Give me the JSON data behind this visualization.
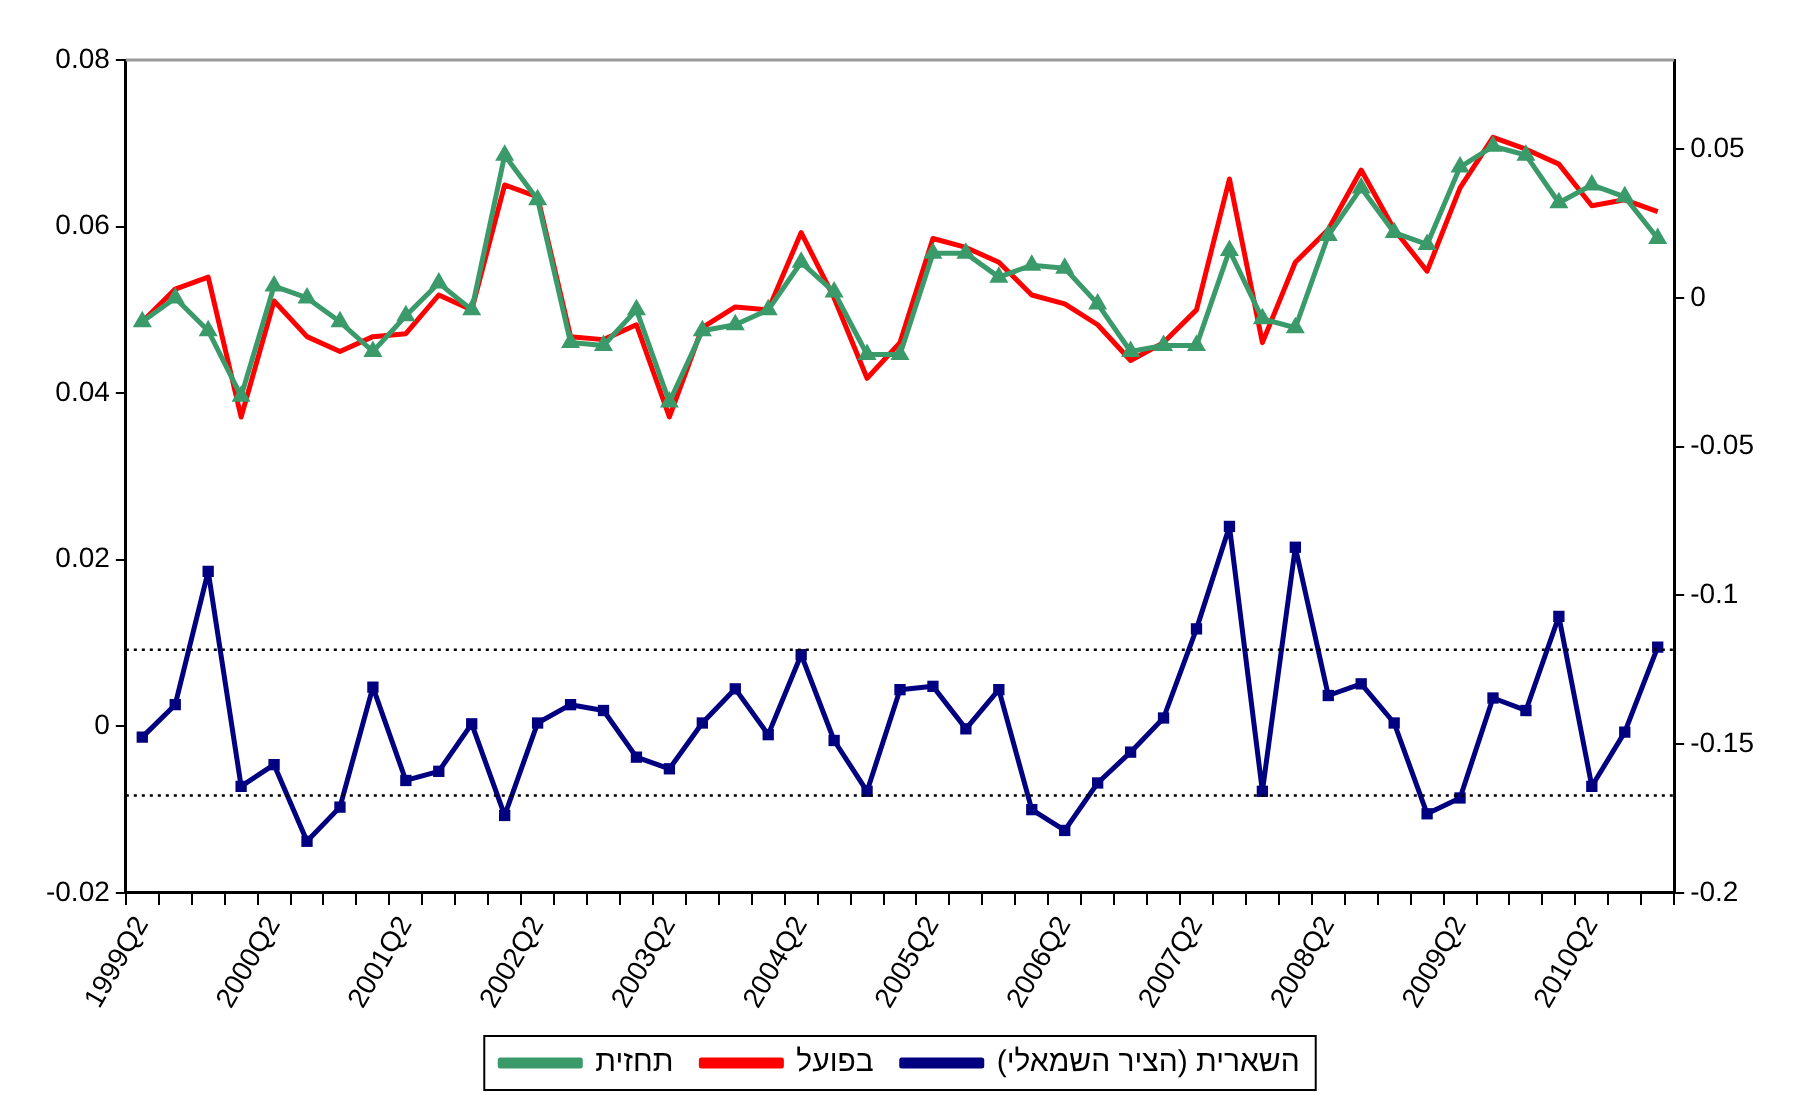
{
  "chart_data": {
    "type": "line",
    "categories": [
      "1999Q2",
      null,
      null,
      null,
      "2000Q2",
      null,
      null,
      null,
      "2001Q2",
      null,
      null,
      null,
      "2002Q2",
      null,
      null,
      null,
      "2003Q2",
      null,
      null,
      null,
      "2004Q2",
      null,
      null,
      null,
      "2005Q2",
      null,
      null,
      null,
      "2006Q2",
      null,
      null,
      null,
      "2007Q2",
      null,
      null,
      null,
      "2008Q2",
      null,
      null,
      null,
      "2009Q2",
      null,
      null,
      null,
      "2010Q2",
      null,
      null
    ],
    "series": [
      {
        "name": "השארית (הציר השמאלי)",
        "color": "#000080",
        "marker": "square",
        "values": [
          -0.0013,
          0.0026,
          0.0186,
          -0.0072,
          -0.0046,
          -0.0138,
          -0.0097,
          0.0047,
          -0.0065,
          -0.0054,
          0.0003,
          -0.0107,
          0.0004,
          0.0026,
          0.0019,
          -0.0037,
          -0.0051,
          0.0004,
          0.0045,
          -0.001,
          0.0086,
          -0.0017,
          -0.0078,
          0.0044,
          0.0048,
          -0.0003,
          0.0044,
          -0.01,
          -0.0125,
          -0.0068,
          -0.0031,
          0.001,
          0.0117,
          0.024,
          -0.0078,
          0.0215,
          0.0037,
          0.0051,
          0.0004,
          -0.0105,
          -0.0086,
          0.0034,
          0.0019,
          0.0132,
          -0.0072,
          -0.0007,
          0.0095
        ]
      },
      {
        "name": "בפועל",
        "color": "#ff0000",
        "marker": "none",
        "axis": "y2",
        "values": [
          -0.008,
          0.003,
          0.007,
          -0.04,
          -0.001,
          -0.013,
          -0.018,
          -0.013,
          -0.012,
          0.001,
          -0.004,
          0.038,
          0.034,
          -0.013,
          -0.014,
          -0.009,
          -0.04,
          -0.01,
          -0.003,
          -0.004,
          0.022,
          0.0,
          -0.027,
          -0.015,
          0.02,
          0.017,
          0.012,
          0.001,
          -0.002,
          -0.009,
          -0.021,
          -0.015,
          -0.004,
          0.04,
          -0.015,
          0.012,
          0.023,
          0.043,
          0.023,
          0.009,
          0.037,
          0.054,
          0.05,
          0.045,
          0.031,
          0.033,
          0.029
        ]
      },
      {
        "name": "תחזית",
        "color": "#3a9a6a",
        "marker": "triangle",
        "axis": "y2",
        "values": [
          -0.008,
          0.0,
          -0.011,
          -0.033,
          0.004,
          0.0,
          -0.008,
          -0.018,
          -0.006,
          0.005,
          -0.004,
          0.048,
          0.033,
          -0.015,
          -0.016,
          -0.004,
          -0.035,
          -0.011,
          -0.009,
          -0.004,
          0.012,
          0.002,
          -0.019,
          -0.019,
          0.015,
          0.015,
          0.007,
          0.011,
          0.01,
          -0.002,
          -0.018,
          -0.016,
          -0.016,
          0.016,
          -0.007,
          -0.01,
          0.021,
          0.037,
          0.022,
          0.018,
          0.044,
          0.051,
          0.048,
          0.032,
          0.038,
          0.034,
          0.02
        ]
      }
    ],
    "ylim": [
      -0.02,
      0.08
    ],
    "yticks": [
      -0.02,
      0,
      0.02,
      0.04,
      0.06,
      0.08
    ],
    "y2lim": [
      -0.2,
      0.08
    ],
    "y2ticks": [
      -0.2,
      -0.15,
      -0.1,
      -0.05,
      0,
      0.05
    ],
    "ref_lines": [
      {
        "axis": "y",
        "value": 0.0092,
        "line_style": "dotted",
        "color": "#000000"
      },
      {
        "axis": "y",
        "value": -0.0083,
        "line_style": "dotted",
        "color": "#000000"
      }
    ],
    "grid": false,
    "legend": "bottom",
    "line_style": "solid"
  }
}
